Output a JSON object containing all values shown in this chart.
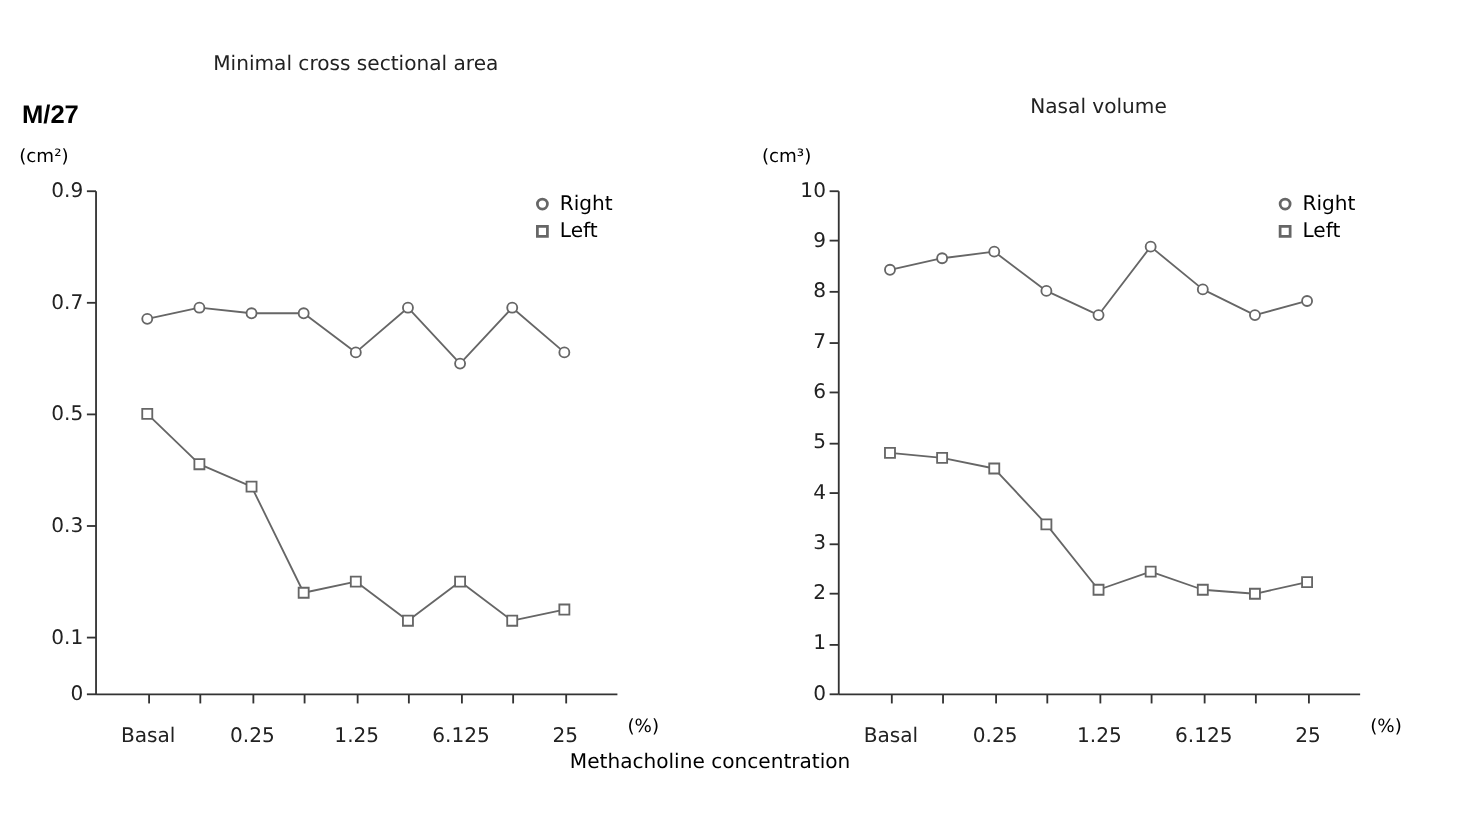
{
  "chart_data": [
    {
      "type": "line",
      "title": "Minimal cross sectional area",
      "ylabel": "(cm²)",
      "xlabel": "Methacholine concentration",
      "annotations": [
        "M/27",
        "(%)"
      ],
      "categories": [
        "Basal",
        null,
        "0.25",
        null,
        "1.25",
        null,
        "6.125",
        null,
        "25"
      ],
      "series": [
        {
          "name": "Right",
          "color": "#666666",
          "marker": "circle",
          "values": [
            0.67,
            0.69,
            0.68,
            0.68,
            0.61,
            0.69,
            0.59,
            0.69,
            0.61
          ]
        },
        {
          "name": "Left",
          "color": "#666666",
          "marker": "square",
          "values": [
            0.5,
            0.41,
            0.37,
            0.18,
            0.2,
            0.13,
            0.2,
            0.13,
            0.15
          ]
        }
      ],
      "ylim": [
        0,
        0.9
      ],
      "yticks": [
        0,
        0.1,
        0.3,
        0.5,
        0.7,
        0.9
      ],
      "grid": false,
      "legend": "top right",
      "line_style": "solid"
    },
    {
      "type": "line",
      "title": "Nasal volume",
      "ylabel": "(cm³)",
      "annotations": [
        "(%)"
      ],
      "categories": [
        "Basal",
        null,
        "0.25",
        null,
        "1.25",
        null,
        "6.125",
        null,
        "25"
      ],
      "series": [
        {
          "name": "Right",
          "color": "#666666",
          "marker": "circle",
          "values": [
            8.42,
            8.65,
            8.78,
            8.0,
            7.52,
            8.88,
            8.03,
            7.52,
            7.8
          ]
        },
        {
          "name": "Left",
          "color": "#666666",
          "marker": "square",
          "values": [
            4.78,
            4.68,
            4.47,
            3.36,
            2.06,
            2.42,
            2.06,
            1.98,
            2.21
          ]
        }
      ],
      "ylim": [
        0,
        10
      ],
      "yticks": [
        0,
        1,
        2,
        3,
        4,
        5,
        6,
        7,
        8,
        9,
        10
      ],
      "grid": false,
      "legend": "top right",
      "line_style": "solid"
    }
  ]
}
